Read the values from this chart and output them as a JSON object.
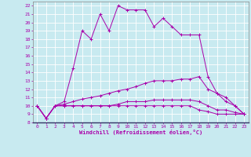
{
  "xlabel": "Windchill (Refroidissement éolien,°C)",
  "background_color": "#c8eaf0",
  "grid_color": "#ffffff",
  "line_color": "#aa00aa",
  "xlim": [
    -0.5,
    23.5
  ],
  "ylim": [
    8,
    22.5
  ],
  "yticks": [
    8,
    9,
    10,
    11,
    12,
    13,
    14,
    15,
    16,
    17,
    18,
    19,
    20,
    21,
    22
  ],
  "xticks": [
    0,
    1,
    2,
    3,
    4,
    5,
    6,
    7,
    8,
    9,
    10,
    11,
    12,
    13,
    14,
    15,
    16,
    17,
    18,
    19,
    20,
    21,
    22,
    23
  ],
  "series": [
    {
      "x": [
        0,
        1,
        2,
        3,
        4,
        5,
        6,
        7,
        8,
        9,
        10,
        11,
        12,
        13,
        14,
        15,
        16,
        17,
        18,
        19,
        20,
        21,
        22,
        23
      ],
      "y": [
        10,
        8.5,
        10,
        10.5,
        14.5,
        19,
        18,
        21,
        19,
        22,
        21.5,
        21.5,
        21.5,
        19.5,
        20.5,
        19.5,
        18.5,
        18.5,
        18.5,
        13.5,
        11.5,
        10.5,
        10,
        9
      ]
    },
    {
      "x": [
        0,
        1,
        2,
        3,
        4,
        5,
        6,
        7,
        8,
        9,
        10,
        11,
        12,
        13,
        14,
        15,
        16,
        17,
        18,
        19,
        20,
        21,
        22,
        23
      ],
      "y": [
        10,
        8.5,
        10,
        10.2,
        10.5,
        10.8,
        11,
        11.2,
        11.5,
        11.8,
        12,
        12.3,
        12.7,
        13,
        13,
        13,
        13.2,
        13.2,
        13.5,
        12,
        11.5,
        11,
        10,
        9
      ]
    },
    {
      "x": [
        0,
        1,
        2,
        3,
        4,
        5,
        6,
        7,
        8,
        9,
        10,
        11,
        12,
        13,
        14,
        15,
        16,
        17,
        18,
        19,
        20,
        21,
        22,
        23
      ],
      "y": [
        10,
        8.5,
        10,
        10,
        10,
        10,
        10,
        10,
        10,
        10.2,
        10.5,
        10.5,
        10.5,
        10.7,
        10.7,
        10.7,
        10.7,
        10.7,
        10.5,
        10,
        9.5,
        9.5,
        9.2,
        9
      ]
    },
    {
      "x": [
        0,
        1,
        2,
        3,
        4,
        5,
        6,
        7,
        8,
        9,
        10,
        11,
        12,
        13,
        14,
        15,
        16,
        17,
        18,
        19,
        20,
        21,
        22,
        23
      ],
      "y": [
        10,
        8.5,
        10,
        10,
        10,
        10,
        10,
        10,
        10,
        10,
        10,
        10,
        10,
        10,
        10,
        10,
        10,
        10,
        9.5,
        9.3,
        9,
        9,
        9,
        9
      ]
    }
  ]
}
